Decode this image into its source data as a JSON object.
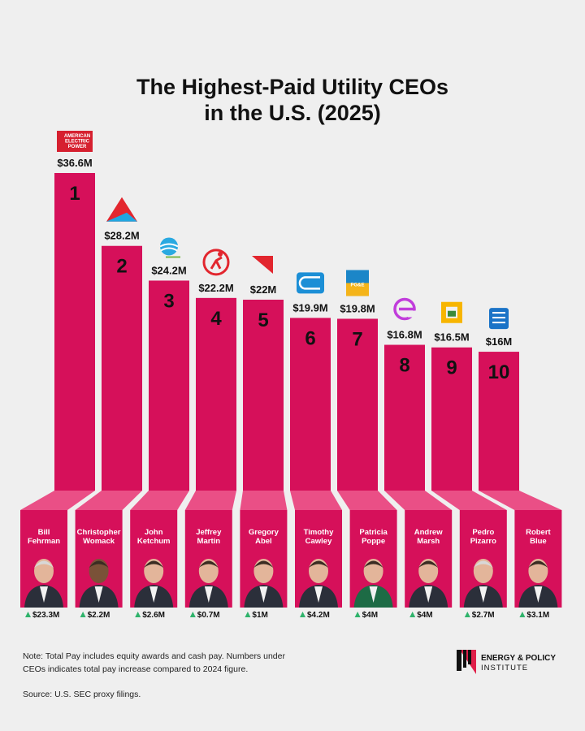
{
  "chart_data": {
    "type": "bar",
    "title_lines": [
      "The Highest-Paid Utility CEOs",
      "in the U.S. (2025)"
    ],
    "ylim": [
      0,
      40
    ],
    "categories": [
      "Bill Fehrman",
      "Christopher Womack",
      "John Ketchum",
      "Jeffrey Martin",
      "Gregory Abel",
      "Timothy Cawley",
      "Patricia Poppe",
      "Andrew Marsh",
      "Pedro Pizarro",
      "Robert Blue"
    ],
    "values": [
      36.6,
      28.2,
      24.2,
      22.2,
      22,
      19.9,
      19.8,
      16.8,
      16.5,
      16
    ],
    "bars": [
      {
        "rank": "1",
        "value_label": "$36.6M",
        "ceo_lines": [
          "Bill",
          "Fehrman"
        ],
        "increase": "$23.3M",
        "logo": "american-electric-power-logo",
        "logo_text": [
          "AMERICAN",
          "ELECTRIC",
          "POWER"
        ]
      },
      {
        "rank": "2",
        "value_label": "$28.2M",
        "ceo_lines": [
          "Christopher",
          "Womack"
        ],
        "increase": "$2.2M",
        "logo": "southern-company-logo"
      },
      {
        "rank": "3",
        "value_label": "$24.2M",
        "ceo_lines": [
          "John",
          "Ketchum"
        ],
        "increase": "$2.6M",
        "logo": "nextera-energy-logo"
      },
      {
        "rank": "4",
        "value_label": "$22.2M",
        "ceo_lines": [
          "Jeffrey",
          "Martin"
        ],
        "increase": "$0.7M",
        "logo": "sempra-logo"
      },
      {
        "rank": "5",
        "value_label": "$22M",
        "ceo_lines": [
          "Gregory",
          "Abel"
        ],
        "increase": "$1M",
        "logo": "berkshire-hathaway-energy-logo"
      },
      {
        "rank": "6",
        "value_label": "$19.9M",
        "ceo_lines": [
          "Timothy",
          "Cawley"
        ],
        "increase": "$4.2M",
        "logo": "con-edison-logo"
      },
      {
        "rank": "7",
        "value_label": "$19.8M",
        "ceo_lines": [
          "Patricia",
          "Poppe"
        ],
        "increase": "$4M",
        "logo": "pge-logo",
        "logo_text": [
          "PG&E"
        ]
      },
      {
        "rank": "8",
        "value_label": "$16.8M",
        "ceo_lines": [
          "Andrew",
          "Marsh"
        ],
        "increase": "$4M",
        "logo": "exelon-logo"
      },
      {
        "rank": "9",
        "value_label": "$16.5M",
        "ceo_lines": [
          "Pedro",
          "Pizarro"
        ],
        "increase": "$2.7M",
        "logo": "edison-international-logo"
      },
      {
        "rank": "10",
        "value_label": "$16M",
        "ceo_lines": [
          "Robert",
          "Blue"
        ],
        "increase": "$3.1M",
        "logo": "dominion-energy-logo"
      }
    ]
  },
  "colors": {
    "background": "#efefef",
    "bar": "#d6105a",
    "bar_shadow": "#b80b4b",
    "panel": "#d6105a",
    "panel_top": "#ea4f86",
    "up_arrow": "#2fb36b",
    "text": "#111111"
  },
  "note_lines": [
    "Note: Total Pay includes equity awards and cash pay. Numbers under",
    "CEOs indicates total pay increase compared to 2024 figure."
  ],
  "source": "Source: U.S. SEC proxy filings.",
  "brand": {
    "name": "ENERGY & POLICY",
    "sub": "INSTITUTE",
    "icon": "energy-policy-institute-logo"
  }
}
